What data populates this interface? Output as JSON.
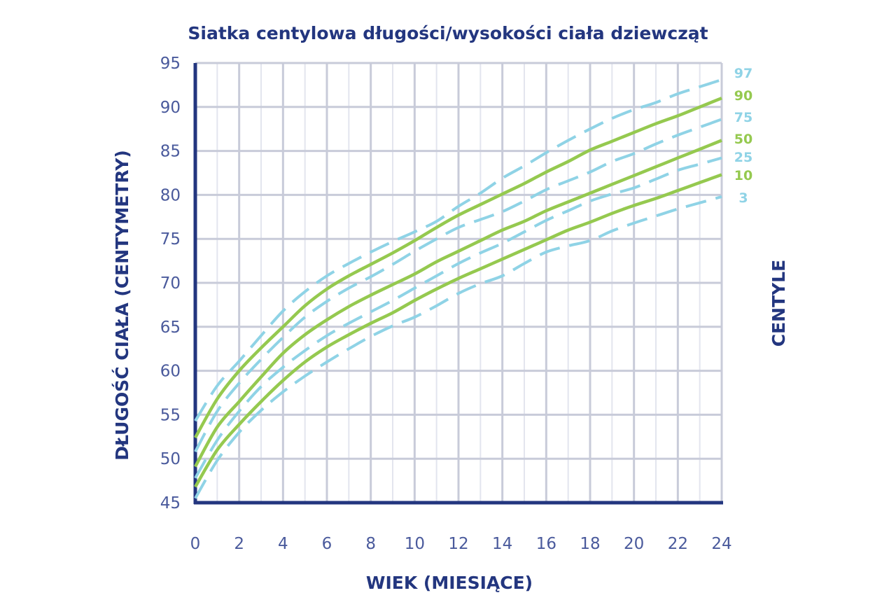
{
  "chart_data": {
    "type": "line",
    "title": "Siatka centylowa długości/wysokości ciała dziewcząt",
    "xlabel": "WIEK (MIESIĄCE)",
    "ylabel": "DŁUGOŚĆ CIAŁA (CENTYMETRY)",
    "legend_title": "CENTYLE",
    "legend_placement": "right",
    "grid": true,
    "xlim": [
      0,
      24
    ],
    "ylim": [
      45,
      95
    ],
    "x_ticks": [
      "0",
      "2",
      "4",
      "6",
      "8",
      "10",
      "12",
      "14",
      "16",
      "18",
      "20",
      "22",
      "24"
    ],
    "y_ticks": [
      "45",
      "50",
      "55",
      "60",
      "65",
      "70",
      "75",
      "80",
      "85",
      "90",
      "95"
    ],
    "x": [
      0,
      1,
      2,
      3,
      4,
      5,
      6,
      7,
      8,
      9,
      10,
      11,
      12,
      13,
      14,
      15,
      16,
      17,
      18,
      19,
      20,
      21,
      22,
      23,
      24
    ],
    "series": [
      {
        "name": "97",
        "style": "dashed",
        "color": "#8fd3e6",
        "values": [
          54.3,
          58.3,
          61.1,
          64.0,
          66.8,
          69.0,
          70.8,
          72.2,
          73.5,
          74.7,
          75.8,
          77.0,
          78.7,
          80.2,
          81.9,
          83.3,
          84.8,
          86.2,
          87.5,
          88.7,
          89.7,
          90.5,
          91.5,
          92.3,
          93.1
        ]
      },
      {
        "name": "90",
        "style": "solid",
        "color": "#95c94f",
        "values": [
          52.4,
          56.8,
          60.0,
          62.6,
          65.0,
          67.4,
          69.3,
          70.8,
          72.1,
          73.4,
          74.8,
          76.3,
          77.7,
          78.9,
          80.1,
          81.3,
          82.6,
          83.8,
          85.1,
          86.1,
          87.1,
          88.1,
          89.0,
          90.0,
          91.0
        ]
      },
      {
        "name": "75",
        "style": "dashed",
        "color": "#8fd3e6",
        "values": [
          50.8,
          55.4,
          58.6,
          61.3,
          63.8,
          66.1,
          67.9,
          69.4,
          70.7,
          72.1,
          73.6,
          75.0,
          76.3,
          77.2,
          78.1,
          79.3,
          80.6,
          81.6,
          82.6,
          83.8,
          84.7,
          85.8,
          86.8,
          87.7,
          88.6
        ]
      },
      {
        "name": "50",
        "style": "solid",
        "color": "#95c94f",
        "values": [
          49.1,
          53.6,
          56.5,
          59.3,
          62.0,
          64.1,
          65.8,
          67.3,
          68.6,
          69.8,
          71.0,
          72.4,
          73.6,
          74.8,
          76.0,
          77.0,
          78.2,
          79.2,
          80.2,
          81.2,
          82.2,
          83.2,
          84.2,
          85.2,
          86.2
        ]
      },
      {
        "name": "25",
        "style": "dashed",
        "color": "#8fd3e6",
        "values": [
          47.8,
          52.1,
          55.4,
          58.2,
          60.4,
          62.3,
          64.0,
          65.4,
          66.7,
          68.0,
          69.4,
          70.8,
          72.2,
          73.4,
          74.5,
          75.8,
          77.1,
          78.2,
          79.3,
          80.1,
          80.8,
          81.8,
          82.8,
          83.5,
          84.2
        ]
      },
      {
        "name": "10",
        "style": "solid",
        "color": "#95c94f",
        "values": [
          46.8,
          51.0,
          53.9,
          56.5,
          58.9,
          61.0,
          62.7,
          64.1,
          65.4,
          66.6,
          68.0,
          69.3,
          70.5,
          71.6,
          72.7,
          73.8,
          74.9,
          76.0,
          76.9,
          77.9,
          78.8,
          79.6,
          80.5,
          81.4,
          82.3
        ]
      },
      {
        "name": "3",
        "style": "dashed",
        "color": "#8fd3e6",
        "values": [
          45.5,
          49.8,
          53.0,
          55.5,
          57.6,
          59.4,
          61.0,
          62.5,
          63.9,
          65.1,
          66.1,
          67.4,
          68.8,
          69.9,
          70.8,
          72.2,
          73.5,
          74.2,
          74.8,
          75.9,
          76.8,
          77.6,
          78.4,
          79.1,
          79.8
        ]
      }
    ]
  }
}
